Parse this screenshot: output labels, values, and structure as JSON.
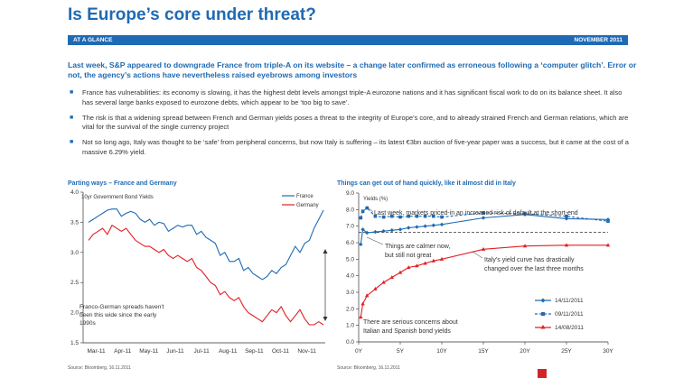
{
  "header": {
    "title": "Is Europe’s core under threat?",
    "banner_left": "AT A GLANCE",
    "banner_right": "NOVEMBER 2011"
  },
  "lead": "Last week, S&P appeared to downgrade France from triple-A on its website – a change later confirmed as erroneous following a ‘computer glitch’. Error or not, the agency’s actions have nevertheless raised eyebrows among investors",
  "bullets": [
    "France has vulnerabilities: its economy is slowing, it has the highest debt levels amongst triple-A eurozone nations and it has significant fiscal work to do on its balance sheet. It also has several large banks exposed to eurozone debts, which appear to be ‘too big to save’.",
    "The risk is that a widening spread between French and German yields poses a threat to the integrity of Europe’s core, and to already strained French and German relations, which are vital for the survival of the single currency project",
    "Not so long ago, Italy was thought to be ‘safe’ from peripheral concerns, but now Italy is suffering – its latest €3bn auction of five-year paper was a success, but it came at the cost of a massive 6.29% yield."
  ],
  "chart_left": {
    "heading": "Parting ways – France and Germany",
    "source": "Source: Bloomberg, 16.11.2011",
    "annotation": [
      "Franco-German spreads haven’t",
      "been this wide since the early",
      "1990s"
    ]
  },
  "chart_right": {
    "heading": "Things can get out of hand quickly, like it almost did in Italy",
    "source": "Source: Bloomberg, 16.11.2011",
    "annotations": {
      "a1": "Last week, markets priced-in an increased risk of default at the short-end",
      "a2": [
        "Things are calmer now,",
        "but still not great"
      ],
      "a3": [
        "Italy’s yield curve has drastically",
        "changed over the last three months"
      ],
      "a4": [
        "There are serious concerns about",
        "Italian and Spanish bond yields"
      ]
    }
  },
  "chart_data": [
    {
      "type": "line",
      "ylabel": "10yr Government Bond Yields",
      "x_ticks": [
        "Mar-11",
        "Apr-11",
        "May-11",
        "Jun-11",
        "Jul-11",
        "Aug-11",
        "Sep-11",
        "Oct-11",
        "Nov-11"
      ],
      "ylim": [
        1.5,
        4.0
      ],
      "y_ticks": [
        1.5,
        2.0,
        2.5,
        3.0,
        3.5,
        4.0
      ],
      "legend_position": "top-right",
      "series": [
        {
          "name": "France",
          "color": "#1f6ab4",
          "values": [
            3.5,
            3.55,
            3.6,
            3.65,
            3.7,
            3.72,
            3.72,
            3.6,
            3.65,
            3.68,
            3.65,
            3.55,
            3.5,
            3.55,
            3.45,
            3.5,
            3.48,
            3.35,
            3.4,
            3.45,
            3.42,
            3.45,
            3.45,
            3.3,
            3.35,
            3.25,
            3.2,
            3.15,
            2.95,
            3.0,
            2.85,
            2.85,
            2.9,
            2.7,
            2.75,
            2.65,
            2.6,
            2.55,
            2.6,
            2.7,
            2.65,
            2.75,
            2.8,
            2.95,
            3.1,
            3.0,
            3.15,
            3.2,
            3.4,
            3.55,
            3.7
          ]
        },
        {
          "name": "Germany",
          "color": "#e31e24",
          "values": [
            3.2,
            3.3,
            3.35,
            3.4,
            3.3,
            3.45,
            3.4,
            3.35,
            3.4,
            3.3,
            3.2,
            3.15,
            3.1,
            3.1,
            3.05,
            3.0,
            3.05,
            2.95,
            2.9,
            2.95,
            2.9,
            2.85,
            2.9,
            2.75,
            2.7,
            2.6,
            2.5,
            2.45,
            2.3,
            2.35,
            2.25,
            2.2,
            2.25,
            2.1,
            2.0,
            1.95,
            1.9,
            1.85,
            1.95,
            2.05,
            2.0,
            2.1,
            1.95,
            1.85,
            1.95,
            2.05,
            1.9,
            1.8,
            1.8,
            1.85,
            1.8
          ]
        }
      ]
    },
    {
      "type": "line",
      "ylabel": "Yields (%)",
      "x_ticks": [
        "0Y",
        "5Y",
        "10Y",
        "15Y",
        "20Y",
        "25Y",
        "30Y"
      ],
      "ylim": [
        0.0,
        9.0
      ],
      "y_ticks": [
        0.0,
        1.0,
        2.0,
        3.0,
        4.0,
        5.0,
        6.0,
        7.0,
        8.0,
        9.0
      ],
      "legend_position": "bottom-right",
      "series": [
        {
          "name": "14/11/2011",
          "color": "#1f6ab4",
          "style": "solid",
          "x": [
            0.25,
            0.5,
            1,
            2,
            3,
            4,
            5,
            6,
            7,
            8,
            9,
            10,
            15,
            20,
            25,
            30
          ],
          "values": [
            5.9,
            6.8,
            6.6,
            6.65,
            6.7,
            6.75,
            6.8,
            6.9,
            6.95,
            7.0,
            7.05,
            7.1,
            7.5,
            7.7,
            7.45,
            7.4
          ]
        },
        {
          "name": "09/11/2011",
          "color": "#1f6ab4",
          "style": "dashed",
          "x": [
            0.25,
            0.5,
            1,
            2,
            3,
            4,
            5,
            6,
            7,
            8,
            9,
            10,
            15,
            20,
            25,
            30
          ],
          "values": [
            7.5,
            7.9,
            8.1,
            7.6,
            7.55,
            7.6,
            7.55,
            7.6,
            7.6,
            7.6,
            7.6,
            7.55,
            7.8,
            7.75,
            7.6,
            7.3
          ]
        },
        {
          "name": "14/08/2011",
          "color": "#e31e24",
          "style": "solid",
          "x": [
            0.25,
            0.5,
            1,
            2,
            3,
            4,
            5,
            6,
            7,
            8,
            9,
            10,
            15,
            20,
            25,
            30
          ],
          "values": [
            1.5,
            2.3,
            2.8,
            3.2,
            3.6,
            3.9,
            4.2,
            4.5,
            4.6,
            4.75,
            4.9,
            5.0,
            5.6,
            5.8,
            5.85,
            5.85
          ]
        }
      ]
    }
  ]
}
